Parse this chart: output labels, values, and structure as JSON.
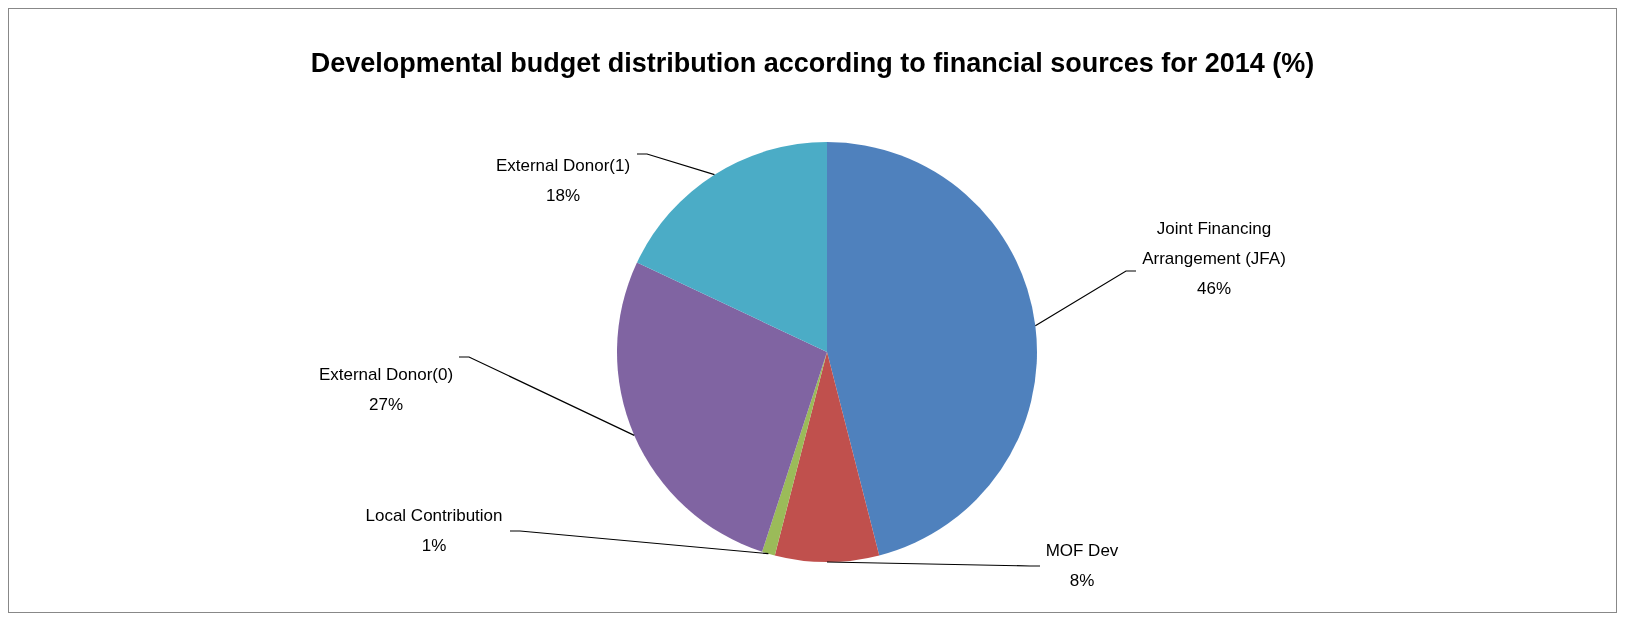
{
  "chart_data": {
    "type": "pie",
    "title": "Developmental budget distribution according to financial sources for 2014 (%)",
    "categories": [
      "Joint Financing Arrangement (JFA)",
      "MOF Dev",
      "Local Contribution",
      "External Donor(0)",
      "External Donor(1)"
    ],
    "values": [
      46,
      8,
      1,
      27,
      18
    ],
    "value_labels": [
      "46%",
      "8%",
      "1%",
      "27%",
      "18%"
    ],
    "colors": [
      "#4f81bd",
      "#c0504d",
      "#9bbb59",
      "#8064a2",
      "#4bacc6"
    ]
  }
}
